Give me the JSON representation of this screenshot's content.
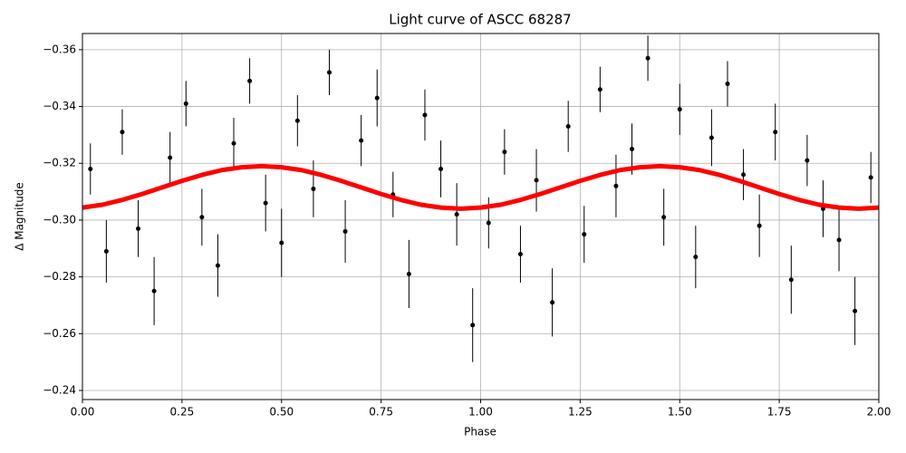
{
  "chart_data": {
    "type": "scatter",
    "title": "Light curve of ASCC 68287",
    "x_label": "Phase",
    "y_label": "Δ Magnitude",
    "xlim": [
      0,
      2
    ],
    "ylim": [
      -0.2368,
      -0.3657
    ],
    "xticks": [
      {
        "value": 0,
        "label": "0.00"
      },
      {
        "value": 0.25,
        "label": "0.25"
      },
      {
        "value": 0.5,
        "label": "0.50"
      },
      {
        "value": 0.75,
        "label": "0.75"
      },
      {
        "value": 1,
        "label": "1.00"
      },
      {
        "value": 1.25,
        "label": "1.25"
      },
      {
        "value": 1.5,
        "label": "1.50"
      },
      {
        "value": 1.75,
        "label": "1.75"
      },
      {
        "value": 2,
        "label": "2.00"
      }
    ],
    "yticks": [
      {
        "value": -0.36,
        "label": "−0.36"
      },
      {
        "value": -0.34,
        "label": "−0.34"
      },
      {
        "value": -0.32,
        "label": "−0.32"
      },
      {
        "value": -0.3,
        "label": "−0.30"
      },
      {
        "value": -0.28,
        "label": "−0.28"
      },
      {
        "value": -0.26,
        "label": "−0.26"
      },
      {
        "value": -0.24,
        "label": "−0.24"
      }
    ],
    "grid": true,
    "series": [
      {
        "color": "#000000",
        "x": [
          0.02,
          0.06,
          0.1,
          0.14,
          0.18,
          0.22,
          0.26,
          0.3,
          0.34,
          0.38,
          0.42,
          0.46,
          0.5,
          0.54,
          0.58,
          0.62,
          0.66,
          0.7,
          0.74,
          0.78,
          0.82,
          0.86,
          0.9,
          0.94,
          0.98,
          1.02,
          1.06,
          1.1,
          1.14,
          1.18,
          1.22,
          1.26,
          1.3,
          1.34,
          1.38,
          1.42,
          1.46,
          1.5,
          1.54,
          1.58,
          1.62,
          1.66,
          1.7,
          1.74,
          1.78,
          1.82,
          1.86,
          1.9,
          1.94,
          1.98
        ],
        "values": [
          -0.318,
          -0.289,
          -0.331,
          -0.297,
          -0.275,
          -0.322,
          -0.341,
          -0.301,
          -0.284,
          -0.327,
          -0.349,
          -0.306,
          -0.292,
          -0.335,
          -0.311,
          -0.352,
          -0.296,
          -0.328,
          -0.343,
          -0.309,
          -0.281,
          -0.337,
          -0.318,
          -0.302,
          -0.263,
          -0.299,
          -0.324,
          -0.288,
          -0.314,
          -0.271,
          -0.333,
          -0.295,
          -0.346,
          -0.312,
          -0.325,
          -0.357,
          -0.301,
          -0.339,
          -0.287,
          -0.329,
          -0.348,
          -0.316,
          -0.298,
          -0.331,
          -0.279,
          -0.321,
          -0.304,
          -0.293,
          -0.268,
          -0.315
        ],
        "errors": [
          0.009,
          0.011,
          0.008,
          0.01,
          0.012,
          0.009,
          0.008,
          0.01,
          0.011,
          0.009,
          0.008,
          0.01,
          0.012,
          0.009,
          0.01,
          0.008,
          0.011,
          0.009,
          0.01,
          0.008,
          0.012,
          0.009,
          0.01,
          0.011,
          0.013,
          0.009,
          0.008,
          0.01,
          0.011,
          0.012,
          0.009,
          0.01,
          0.008,
          0.011,
          0.009,
          0.008,
          0.01,
          0.009,
          0.011,
          0.01,
          0.008,
          0.009,
          0.011,
          0.01,
          0.012,
          0.009,
          0.01,
          0.011,
          0.012,
          0.009
        ]
      },
      {
        "color": "#ff0000",
        "x": [
          0,
          0.05,
          0.1,
          0.15,
          0.2,
          0.25,
          0.3,
          0.35,
          0.4,
          0.45,
          0.5,
          0.55,
          0.6,
          0.65,
          0.7,
          0.75,
          0.8,
          0.85,
          0.9,
          0.95,
          1,
          1.05,
          1.1,
          1.15,
          1.2,
          1.25,
          1.3,
          1.35,
          1.4,
          1.45,
          1.5,
          1.55,
          1.6,
          1.65,
          1.7,
          1.75,
          1.8,
          1.85,
          1.9,
          1.95,
          2
        ],
        "values": [
          -0.3044,
          -0.3054,
          -0.3071,
          -0.3092,
          -0.3115,
          -0.3138,
          -0.3159,
          -0.3176,
          -0.3186,
          -0.319,
          -0.3186,
          -0.3176,
          -0.3159,
          -0.3138,
          -0.3115,
          -0.3092,
          -0.3071,
          -0.3054,
          -0.3044,
          -0.304,
          -0.3044,
          -0.3054,
          -0.3071,
          -0.3092,
          -0.3115,
          -0.3138,
          -0.3159,
          -0.3176,
          -0.3186,
          -0.319,
          -0.3186,
          -0.3176,
          -0.3159,
          -0.3138,
          -0.3115,
          -0.3092,
          -0.3071,
          -0.3054,
          -0.3044,
          -0.304,
          -0.3044
        ]
      }
    ]
  }
}
